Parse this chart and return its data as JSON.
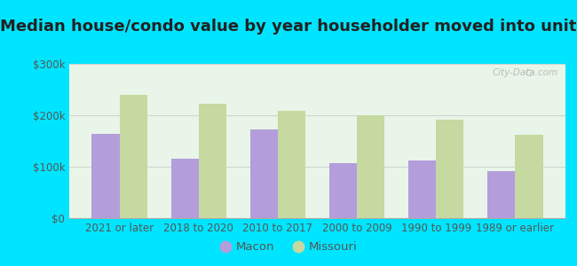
{
  "title": "Median house/condo value by year householder moved into unit",
  "categories": [
    "2021 or later",
    "2018 to 2020",
    "2010 to 2017",
    "2000 to 2009",
    "1990 to 1999",
    "1989 or earlier"
  ],
  "macon_values": [
    163000,
    115000,
    172000,
    107000,
    112000,
    92000
  ],
  "missouri_values": [
    240000,
    222000,
    208000,
    200000,
    192000,
    162000
  ],
  "macon_color": "#b39ddb",
  "missouri_color": "#c5d9a0",
  "background_color": "#00e5ff",
  "plot_bg": "#e8f5e8",
  "ylim": [
    0,
    300000
  ],
  "yticks": [
    0,
    100000,
    200000,
    300000
  ],
  "ytick_labels": [
    "$0",
    "$100k",
    "$200k",
    "$300k"
  ],
  "bar_width": 0.35,
  "watermark": "City-Data.com",
  "legend_labels": [
    "Macon",
    "Missouri"
  ],
  "title_fontsize": 13,
  "tick_fontsize": 8.5,
  "legend_fontsize": 9.5
}
